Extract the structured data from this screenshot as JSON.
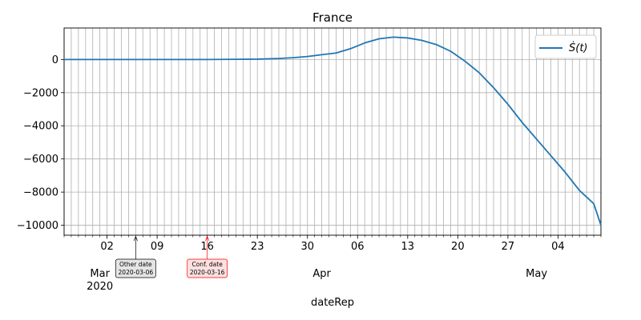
{
  "chart_data": {
    "type": "line",
    "title": "France",
    "xlabel": "dateRep",
    "ylabel": "",
    "x_range": [
      "2020-02-25",
      "2020-05-10"
    ],
    "ylim": [
      -10600,
      1900
    ],
    "grid": true,
    "y_ticks": [
      0,
      -2000,
      -4000,
      -6000,
      -8000,
      -10000
    ],
    "y_tick_labels": [
      "0",
      "−2000",
      "−4000",
      "−6000",
      "−8000",
      "−10000"
    ],
    "x_ticks": [
      {
        "date": "2020-03-02",
        "label": "02"
      },
      {
        "date": "2020-03-09",
        "label": "09"
      },
      {
        "date": "2020-03-16",
        "label": "16"
      },
      {
        "date": "2020-03-23",
        "label": "23"
      },
      {
        "date": "2020-03-30",
        "label": "30"
      },
      {
        "date": "2020-04-06",
        "label": "06"
      },
      {
        "date": "2020-04-13",
        "label": "13"
      },
      {
        "date": "2020-04-20",
        "label": "20"
      },
      {
        "date": "2020-04-27",
        "label": "27"
      },
      {
        "date": "2020-05-04",
        "label": "04"
      }
    ],
    "month_labels": [
      {
        "date": "2020-03-01",
        "label": "Mar",
        "year": "2020"
      },
      {
        "date": "2020-04-01",
        "label": "Apr",
        "year": ""
      },
      {
        "date": "2020-05-01",
        "label": "May",
        "year": ""
      }
    ],
    "legend": {
      "position": "top-right",
      "entries": [
        "$\\dot{S}(t)$"
      ],
      "display": "Ṡ(t)"
    },
    "series": [
      {
        "name": "Ṡ(t)",
        "color": "#1f77b4",
        "points": [
          [
            "2020-02-25",
            0
          ],
          [
            "2020-03-01",
            0
          ],
          [
            "2020-03-06",
            0
          ],
          [
            "2020-03-11",
            0
          ],
          [
            "2020-03-16",
            0
          ],
          [
            "2020-03-20",
            10
          ],
          [
            "2020-03-23",
            20
          ],
          [
            "2020-03-26",
            60
          ],
          [
            "2020-03-28",
            110
          ],
          [
            "2020-03-30",
            180
          ],
          [
            "2020-04-01",
            290
          ],
          [
            "2020-04-03",
            390
          ],
          [
            "2020-04-05",
            650
          ],
          [
            "2020-04-07",
            1000
          ],
          [
            "2020-04-09",
            1250
          ],
          [
            "2020-04-11",
            1350
          ],
          [
            "2020-04-13",
            1300
          ],
          [
            "2020-04-15",
            1150
          ],
          [
            "2020-04-17",
            900
          ],
          [
            "2020-04-19",
            500
          ],
          [
            "2020-04-21",
            -100
          ],
          [
            "2020-04-23",
            -800
          ],
          [
            "2020-04-25",
            -1700
          ],
          [
            "2020-04-27",
            -2700
          ],
          [
            "2020-04-29",
            -3800
          ],
          [
            "2020-05-01",
            -4800
          ],
          [
            "2020-05-03",
            -5800
          ],
          [
            "2020-05-05",
            -6800
          ],
          [
            "2020-05-07",
            -7900
          ],
          [
            "2020-05-09",
            -8700
          ],
          [
            "2020-05-10",
            -10000
          ]
        ]
      }
    ],
    "annotations": [
      {
        "name": "Other date",
        "date": "2020-03-06",
        "label_line1": "Other date",
        "label_line2": "2020-03-06",
        "color": "#000000",
        "box_fill": "#e5e5e5"
      },
      {
        "name": "Conf. date",
        "date": "2020-03-16",
        "label_line1": "Conf. date",
        "label_line2": "2020-03-16",
        "color": "#ff0000",
        "box_fill": "#fde0e0"
      }
    ]
  }
}
